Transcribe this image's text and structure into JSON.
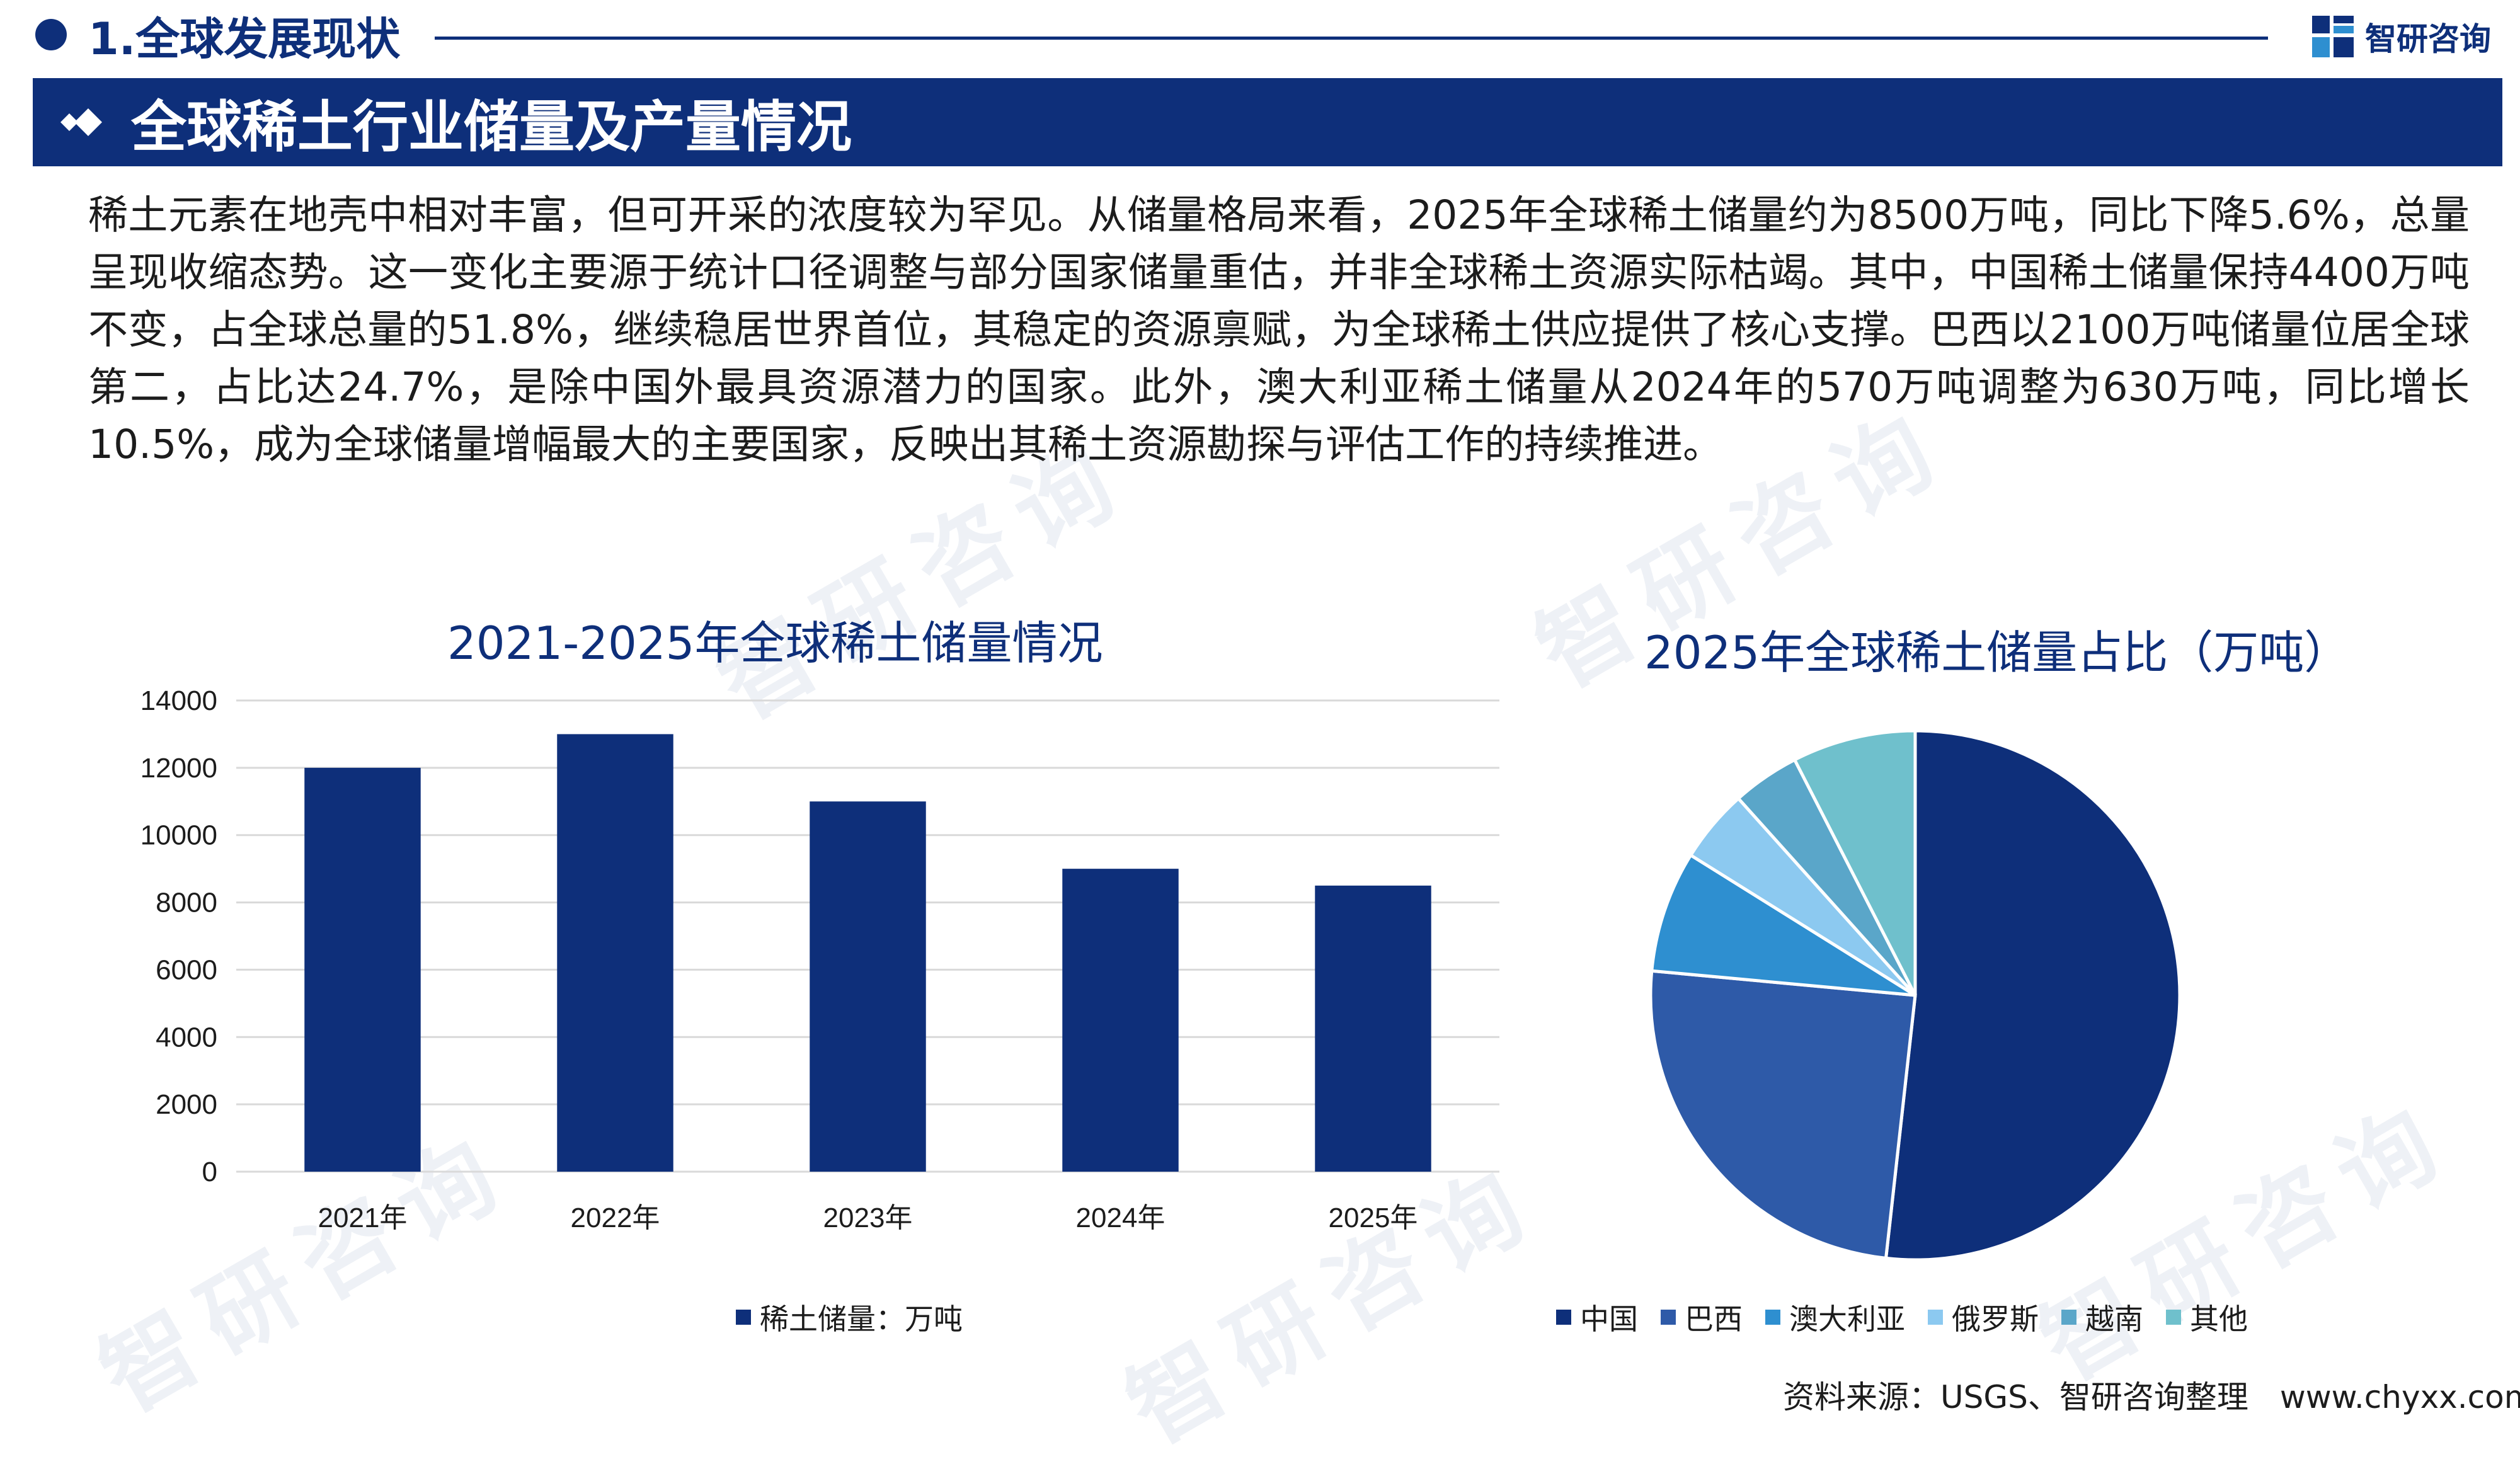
{
  "header": {
    "section_title": "1.全球发展现状",
    "logo_text": "智研咨询",
    "banner_title": "全球稀土行业储量及产量情况"
  },
  "body_text": "稀土元素在地壳中相对丰富，但可开采的浓度较为罕见。从储量格局来看，2025年全球稀土储量约为8500万吨，同比下降5.6%，总量呈现收缩态势。这一变化主要源于统计口径调整与部分国家储量重估，并非全球稀土资源实际枯竭。其中，中国稀土储量保持4400万吨不变，占全球总量的51.8%，继续稳居世界首位，其稳定的资源禀赋，为全球稀土供应提供了核心支撑。巴西以2100万吨储量位居全球第二，占比达24.7%，是除中国外最具资源潜力的国家。此外，澳大利亚稀土储量从2024年的570万吨调整为630万吨，同比增长10.5%，成为全球储量增幅最大的主要国家，反映出其稀土资源勘探与评估工作的持续推进。",
  "source": "资料来源：USGS、智研咨询整理　www.chyxx.com",
  "watermark": "智研咨询",
  "colors": {
    "brand": "#0e2f7a",
    "bar": "#0e2f7a"
  },
  "chart_data": [
    {
      "type": "bar",
      "title": "2021-2025年全球稀土储量情况",
      "categories": [
        "2021年",
        "2022年",
        "2023年",
        "2024年",
        "2025年"
      ],
      "series": [
        {
          "name": "稀土储量：万吨",
          "values": [
            12000,
            13000,
            11000,
            9000,
            8500
          ]
        }
      ],
      "yticks": [
        "0",
        "2000",
        "4000",
        "6000",
        "8000",
        "10000",
        "12000",
        "14000"
      ],
      "ylim": [
        0,
        14000
      ],
      "grid": true,
      "legend": "bottom"
    },
    {
      "type": "pie",
      "title": "2025年全球稀土储量占比（万吨）",
      "slices": [
        {
          "label": "中国",
          "value": 4400,
          "color": "#0e2f7a"
        },
        {
          "label": "巴西",
          "value": 2100,
          "color": "#2e5aa8"
        },
        {
          "label": "澳大利亚",
          "value": 630,
          "color": "#2e8fd0"
        },
        {
          "label": "俄罗斯",
          "value": 380,
          "color": "#8cc9f0"
        },
        {
          "label": "越南",
          "value": 350,
          "color": "#5aa6c9"
        },
        {
          "label": "其他",
          "value": 640,
          "color": "#6fc0cc"
        }
      ],
      "legend": "bottom"
    }
  ]
}
